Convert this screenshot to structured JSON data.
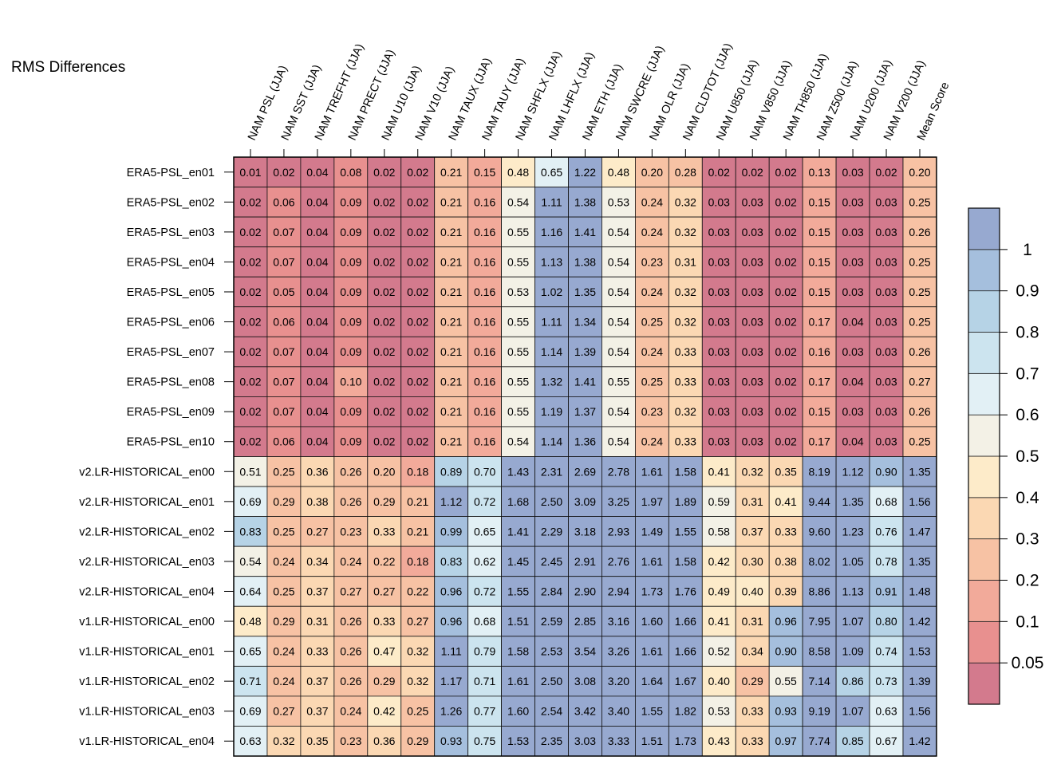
{
  "chart_data": {
    "type": "heatmap",
    "title": "RMS Differences",
    "columns": [
      "NAM PSL (JJA)",
      "NAM SST (JJA)",
      "NAM TREFHT (JJA)",
      "NAM PRECT (JJA)",
      "NAM U10 (JJA)",
      "NAM V10 (JJA)",
      "NAM TAUX (JJA)",
      "NAM TAUY (JJA)",
      "NAM SHFLX (JJA)",
      "NAM LHFLX (JJA)",
      "NAM ETH (JJA)",
      "NAM SWCRE (JJA)",
      "NAM OLR (JJA)",
      "NAM CLDTOT (JJA)",
      "NAM U850 (JJA)",
      "NAM V850 (JJA)",
      "NAM TH850 (JJA)",
      "NAM Z500 (JJA)",
      "NAM U200 (JJA)",
      "NAM V200 (JJA)",
      "Mean Score"
    ],
    "rows": [
      "ERA5-PSL_en01",
      "ERA5-PSL_en02",
      "ERA5-PSL_en03",
      "ERA5-PSL_en04",
      "ERA5-PSL_en05",
      "ERA5-PSL_en06",
      "ERA5-PSL_en07",
      "ERA5-PSL_en08",
      "ERA5-PSL_en09",
      "ERA5-PSL_en10",
      "v2.LR-HISTORICAL_en00",
      "v2.LR-HISTORICAL_en01",
      "v2.LR-HISTORICAL_en02",
      "v2.LR-HISTORICAL_en03",
      "v2.LR-HISTORICAL_en04",
      "v1.LR-HISTORICAL_en00",
      "v1.LR-HISTORICAL_en01",
      "v1.LR-HISTORICAL_en02",
      "v1.LR-HISTORICAL_en03",
      "v1.LR-HISTORICAL_en04"
    ],
    "values": [
      [
        "0.01",
        "0.02",
        "0.04",
        "0.08",
        "0.02",
        "0.02",
        "0.21",
        "0.15",
        "0.48",
        "0.65",
        "1.22",
        "0.48",
        "0.20",
        "0.28",
        "0.02",
        "0.02",
        "0.02",
        "0.13",
        "0.03",
        "0.02",
        "0.20"
      ],
      [
        "0.02",
        "0.06",
        "0.04",
        "0.09",
        "0.02",
        "0.02",
        "0.21",
        "0.16",
        "0.54",
        "1.11",
        "1.38",
        "0.53",
        "0.24",
        "0.32",
        "0.03",
        "0.03",
        "0.02",
        "0.15",
        "0.03",
        "0.03",
        "0.25"
      ],
      [
        "0.02",
        "0.07",
        "0.04",
        "0.09",
        "0.02",
        "0.02",
        "0.21",
        "0.16",
        "0.55",
        "1.16",
        "1.41",
        "0.54",
        "0.24",
        "0.32",
        "0.03",
        "0.03",
        "0.02",
        "0.15",
        "0.03",
        "0.03",
        "0.26"
      ],
      [
        "0.02",
        "0.07",
        "0.04",
        "0.09",
        "0.02",
        "0.02",
        "0.21",
        "0.16",
        "0.55",
        "1.13",
        "1.38",
        "0.54",
        "0.23",
        "0.31",
        "0.03",
        "0.03",
        "0.02",
        "0.15",
        "0.03",
        "0.03",
        "0.25"
      ],
      [
        "0.02",
        "0.05",
        "0.04",
        "0.09",
        "0.02",
        "0.02",
        "0.21",
        "0.16",
        "0.53",
        "1.02",
        "1.35",
        "0.54",
        "0.24",
        "0.32",
        "0.03",
        "0.03",
        "0.02",
        "0.15",
        "0.03",
        "0.03",
        "0.25"
      ],
      [
        "0.02",
        "0.06",
        "0.04",
        "0.09",
        "0.02",
        "0.02",
        "0.21",
        "0.16",
        "0.55",
        "1.11",
        "1.34",
        "0.54",
        "0.25",
        "0.32",
        "0.03",
        "0.03",
        "0.02",
        "0.17",
        "0.04",
        "0.03",
        "0.25"
      ],
      [
        "0.02",
        "0.07",
        "0.04",
        "0.09",
        "0.02",
        "0.02",
        "0.21",
        "0.16",
        "0.55",
        "1.14",
        "1.39",
        "0.54",
        "0.24",
        "0.33",
        "0.03",
        "0.03",
        "0.02",
        "0.16",
        "0.03",
        "0.03",
        "0.26"
      ],
      [
        "0.02",
        "0.07",
        "0.04",
        "0.10",
        "0.02",
        "0.02",
        "0.21",
        "0.16",
        "0.55",
        "1.32",
        "1.41",
        "0.55",
        "0.25",
        "0.33",
        "0.03",
        "0.03",
        "0.02",
        "0.17",
        "0.04",
        "0.03",
        "0.27"
      ],
      [
        "0.02",
        "0.07",
        "0.04",
        "0.09",
        "0.02",
        "0.02",
        "0.21",
        "0.16",
        "0.55",
        "1.19",
        "1.37",
        "0.54",
        "0.23",
        "0.32",
        "0.03",
        "0.03",
        "0.02",
        "0.15",
        "0.03",
        "0.03",
        "0.26"
      ],
      [
        "0.02",
        "0.06",
        "0.04",
        "0.09",
        "0.02",
        "0.02",
        "0.21",
        "0.16",
        "0.54",
        "1.14",
        "1.36",
        "0.54",
        "0.24",
        "0.33",
        "0.03",
        "0.03",
        "0.02",
        "0.17",
        "0.04",
        "0.03",
        "0.25"
      ],
      [
        "0.51",
        "0.25",
        "0.36",
        "0.26",
        "0.20",
        "0.18",
        "0.89",
        "0.70",
        "1.43",
        "2.31",
        "2.69",
        "2.78",
        "1.61",
        "1.58",
        "0.41",
        "0.32",
        "0.35",
        "8.19",
        "1.12",
        "0.90",
        "1.35"
      ],
      [
        "0.69",
        "0.29",
        "0.38",
        "0.26",
        "0.29",
        "0.21",
        "1.12",
        "0.72",
        "1.68",
        "2.50",
        "3.09",
        "3.25",
        "1.97",
        "1.89",
        "0.59",
        "0.31",
        "0.41",
        "9.44",
        "1.35",
        "0.68",
        "1.56"
      ],
      [
        "0.83",
        "0.25",
        "0.27",
        "0.23",
        "0.33",
        "0.21",
        "0.99",
        "0.65",
        "1.41",
        "2.29",
        "3.18",
        "2.93",
        "1.49",
        "1.55",
        "0.58",
        "0.37",
        "0.33",
        "9.60",
        "1.23",
        "0.76",
        "1.47"
      ],
      [
        "0.54",
        "0.24",
        "0.34",
        "0.24",
        "0.22",
        "0.18",
        "0.83",
        "0.62",
        "1.45",
        "2.45",
        "2.91",
        "2.76",
        "1.61",
        "1.58",
        "0.42",
        "0.30",
        "0.38",
        "8.02",
        "1.05",
        "0.78",
        "1.35"
      ],
      [
        "0.64",
        "0.25",
        "0.37",
        "0.27",
        "0.27",
        "0.22",
        "0.96",
        "0.72",
        "1.55",
        "2.84",
        "2.90",
        "2.94",
        "1.73",
        "1.76",
        "0.49",
        "0.40",
        "0.39",
        "8.86",
        "1.13",
        "0.91",
        "1.48"
      ],
      [
        "0.48",
        "0.29",
        "0.31",
        "0.26",
        "0.33",
        "0.27",
        "0.96",
        "0.68",
        "1.51",
        "2.59",
        "2.85",
        "3.16",
        "1.60",
        "1.66",
        "0.41",
        "0.31",
        "0.96",
        "7.95",
        "1.07",
        "0.80",
        "1.42"
      ],
      [
        "0.65",
        "0.24",
        "0.33",
        "0.26",
        "0.47",
        "0.32",
        "1.11",
        "0.79",
        "1.58",
        "2.53",
        "3.54",
        "3.26",
        "1.61",
        "1.66",
        "0.52",
        "0.34",
        "0.90",
        "8.58",
        "1.09",
        "0.74",
        "1.53"
      ],
      [
        "0.71",
        "0.24",
        "0.37",
        "0.26",
        "0.29",
        "0.32",
        "1.17",
        "0.71",
        "1.61",
        "2.50",
        "3.08",
        "3.20",
        "1.64",
        "1.67",
        "0.40",
        "0.29",
        "0.55",
        "7.14",
        "0.86",
        "0.73",
        "1.39"
      ],
      [
        "0.69",
        "0.27",
        "0.37",
        "0.24",
        "0.42",
        "0.25",
        "1.26",
        "0.77",
        "1.60",
        "2.54",
        "3.42",
        "3.40",
        "1.55",
        "1.82",
        "0.53",
        "0.33",
        "0.93",
        "9.19",
        "1.07",
        "0.63",
        "1.56"
      ],
      [
        "0.63",
        "0.32",
        "0.35",
        "0.23",
        "0.36",
        "0.29",
        "0.93",
        "0.75",
        "1.53",
        "2.35",
        "3.03",
        "3.33",
        "1.51",
        "1.73",
        "0.43",
        "0.33",
        "0.97",
        "7.74",
        "0.85",
        "0.67",
        "1.42"
      ]
    ],
    "colorbar": {
      "bins": [
        0,
        0.05,
        0.1,
        0.2,
        0.3,
        0.4,
        0.5,
        0.6,
        0.7,
        0.8,
        0.9,
        1
      ],
      "labels": [
        "1",
        "0.9",
        "0.8",
        "0.7",
        "0.6",
        "0.5",
        "0.4",
        "0.3",
        "0.2",
        "0.1",
        "0.05"
      ],
      "colors": [
        "#d37a8d",
        "#e8908f",
        "#f2aa9a",
        "#f7c2a4",
        "#fbd8b3",
        "#fdebc9",
        "#f3f1e6",
        "#e2f0f5",
        "#cce4ef",
        "#b6d3e6",
        "#a5bfdd",
        "#97a9d0"
      ]
    }
  }
}
